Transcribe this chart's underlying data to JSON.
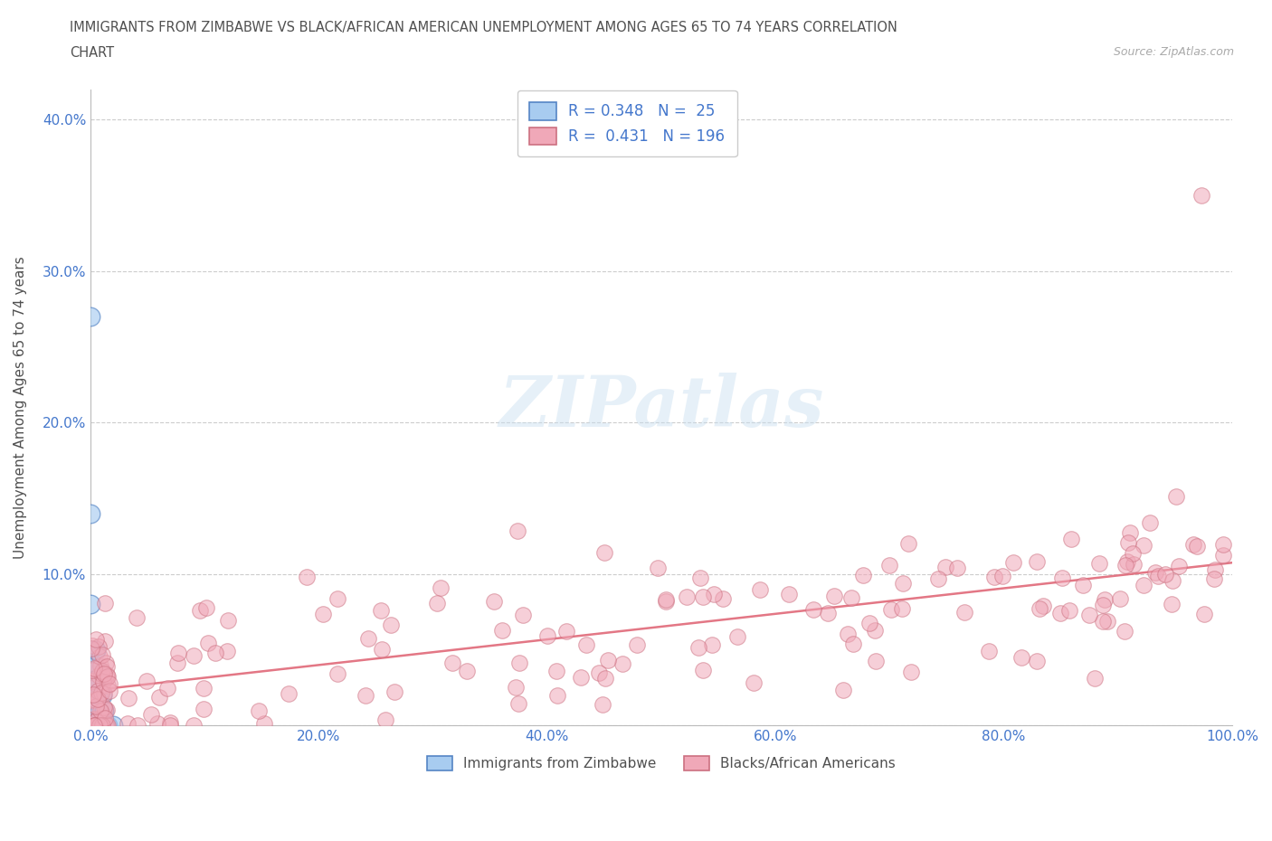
{
  "title_line1": "IMMIGRANTS FROM ZIMBABWE VS BLACK/AFRICAN AMERICAN UNEMPLOYMENT AMONG AGES 65 TO 74 YEARS CORRELATION",
  "title_line2": "CHART",
  "source": "Source: ZipAtlas.com",
  "ylabel": "Unemployment Among Ages 65 to 74 years",
  "watermark": "ZIPatlas",
  "legend_r1": "R = 0.348",
  "legend_n1": "N =  25",
  "legend_r2": "R =  0.431",
  "legend_n2": "N = 196",
  "blue_color": "#a8ccf0",
  "pink_color": "#f0a8b8",
  "blue_line_color": "#5585c5",
  "pink_line_color": "#e06878",
  "title_color": "#505050",
  "axis_label_color": "#4477cc",
  "background_color": "#ffffff",
  "grid_color": "#cccccc",
  "xlim": [
    0.0,
    1.0
  ],
  "ylim": [
    0.0,
    0.42
  ],
  "xtick_positions": [
    0.0,
    0.2,
    0.4,
    0.6,
    0.8,
    1.0
  ],
  "xtick_labels": [
    "0.0%",
    "20.0%",
    "40.0%",
    "60.0%",
    "80.0%",
    "100.0%"
  ],
  "ytick_positions": [
    0.0,
    0.1,
    0.2,
    0.3,
    0.4
  ],
  "ytick_labels": [
    "",
    "10.0%",
    "20.0%",
    "30.0%",
    "40.0%"
  ]
}
